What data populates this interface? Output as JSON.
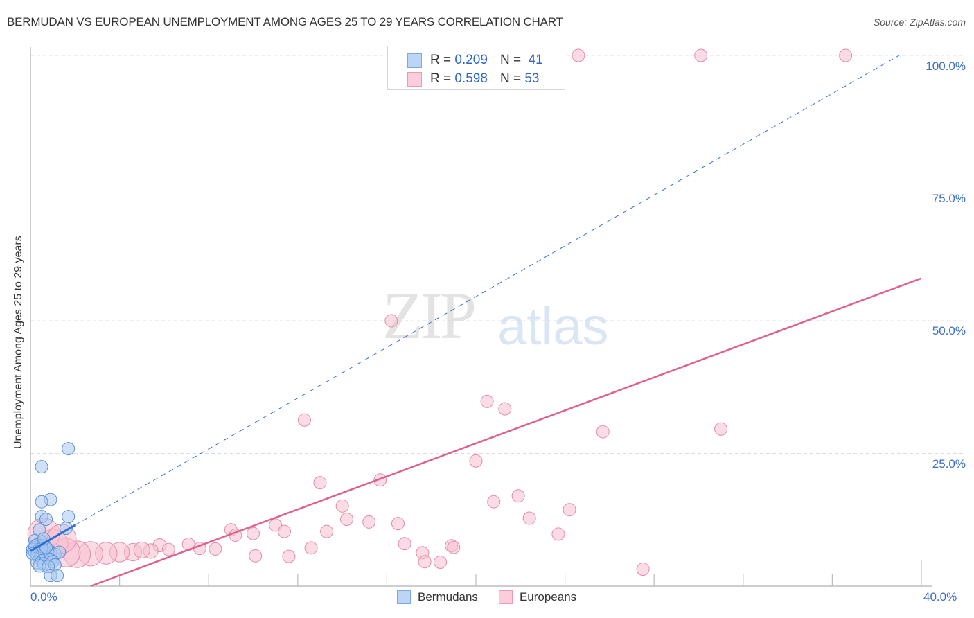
{
  "header": {
    "title": "BERMUDAN VS EUROPEAN UNEMPLOYMENT AMONG AGES 25 TO 29 YEARS CORRELATION CHART",
    "source": "Source: ZipAtlas.com"
  },
  "watermark": {
    "zip": "ZIP",
    "atlas": "atlas"
  },
  "axes": {
    "ylabel": "Unemployment Among Ages 25 to 29 years",
    "yticks": [
      "100.0%",
      "75.0%",
      "50.0%",
      "25.0%"
    ],
    "xticks": {
      "min": "0.0%",
      "max": "40.0%"
    }
  },
  "legend_top": {
    "rows": [
      {
        "r_label": "R =",
        "r_value": "0.209",
        "n_label": "N =",
        "n_value": "41",
        "color": "#a9c8f0"
      },
      {
        "r_label": "R =",
        "r_value": "0.598",
        "n_label": "N =",
        "n_value": "53",
        "color": "#f7bfd0"
      }
    ]
  },
  "legend_bottom": {
    "items": [
      {
        "label": "Bermudans",
        "color": "#a9c8f0"
      },
      {
        "label": "Europeans",
        "color": "#f7bfd0"
      }
    ]
  },
  "colors": {
    "blue_fill": "#a9c8f0",
    "blue_stroke": "#5b8fd8",
    "blue_line": "#2f6fd6",
    "pink_fill": "#f7bfd0",
    "pink_stroke": "#e58aa8",
    "pink_line": "#e0608c",
    "tick_text": "#3b6fc9"
  },
  "chart_data": {
    "type": "scatter",
    "title": "BERMUDAN VS EUROPEAN UNEMPLOYMENT AMONG AGES 25 TO 29 YEARS CORRELATION CHART",
    "xlabel": "",
    "ylabel": "Unemployment Among Ages 25 to 29 years",
    "xlim": [
      0,
      40
    ],
    "ylim": [
      0,
      100
    ],
    "x_tick_labels": [
      "0.0%",
      "40.0%"
    ],
    "y_tick_labels": [
      "25.0%",
      "50.0%",
      "75.0%",
      "100.0%"
    ],
    "grid": {
      "horizontal_dashed": true,
      "values": [
        25,
        50,
        75,
        100
      ]
    },
    "legend_position": "bottom-center",
    "series": [
      {
        "name": "Bermudans",
        "R": 0.209,
        "N": 41,
        "trend": {
          "x": [
            0,
            2.0,
            39.0
          ],
          "y": [
            6.6,
            11.5,
            100
          ],
          "style": "solid-then-dashed"
        },
        "points": [
          [
            1.7,
            25.9
          ],
          [
            0.5,
            22.5
          ],
          [
            0.9,
            16.3
          ],
          [
            0.5,
            15.9
          ],
          [
            0.5,
            13.1
          ],
          [
            1.7,
            13.1
          ],
          [
            0.7,
            12.6
          ],
          [
            0.4,
            10.6
          ],
          [
            1.6,
            10.9
          ],
          [
            0.2,
            8.6
          ],
          [
            0.5,
            8.3
          ],
          [
            0.3,
            7.8
          ],
          [
            0.6,
            7.6
          ],
          [
            0.2,
            7.2
          ],
          [
            0.4,
            7.0
          ],
          [
            0.1,
            6.9
          ],
          [
            0.8,
            6.9
          ],
          [
            0.3,
            6.6
          ],
          [
            0.6,
            6.5
          ],
          [
            0.2,
            6.3
          ],
          [
            0.9,
            6.2
          ],
          [
            0.5,
            6.0
          ],
          [
            1.1,
            6.0
          ],
          [
            0.3,
            5.8
          ],
          [
            0.7,
            5.6
          ],
          [
            1.3,
            6.4
          ],
          [
            0.4,
            5.2
          ],
          [
            0.9,
            5.0
          ],
          [
            1.0,
            4.6
          ],
          [
            0.3,
            4.4
          ],
          [
            0.6,
            4.2
          ],
          [
            1.1,
            4.0
          ],
          [
            0.4,
            3.8
          ],
          [
            0.8,
            3.7
          ],
          [
            0.2,
            7.5
          ],
          [
            0.5,
            7.1
          ],
          [
            0.7,
            7.3
          ],
          [
            0.1,
            6.1
          ],
          [
            0.9,
            2.0
          ],
          [
            1.2,
            2.0
          ],
          [
            0.6,
            8.9
          ]
        ]
      },
      {
        "name": "Europeans",
        "R": 0.598,
        "N": 53,
        "trend": {
          "x": [
            2.7,
            40.0
          ],
          "y": [
            0,
            58.0
          ],
          "style": "solid"
        },
        "points": [
          [
            24.6,
            100
          ],
          [
            30.1,
            100
          ],
          [
            36.6,
            100
          ],
          [
            16.2,
            50.0
          ],
          [
            20.5,
            34.8
          ],
          [
            21.3,
            33.4
          ],
          [
            12.3,
            31.3
          ],
          [
            25.7,
            29.1
          ],
          [
            31.0,
            29.6
          ],
          [
            20.0,
            23.6
          ],
          [
            13.0,
            19.5
          ],
          [
            15.7,
            20.0
          ],
          [
            20.8,
            15.9
          ],
          [
            21.9,
            17.0
          ],
          [
            14.0,
            15.1
          ],
          [
            24.2,
            14.4
          ],
          [
            14.2,
            12.6
          ],
          [
            15.2,
            12.1
          ],
          [
            22.4,
            12.8
          ],
          [
            16.5,
            11.8
          ],
          [
            11.0,
            11.5
          ],
          [
            11.4,
            10.3
          ],
          [
            9.0,
            10.6
          ],
          [
            13.3,
            10.3
          ],
          [
            23.7,
            9.8
          ],
          [
            9.2,
            9.6
          ],
          [
            10.0,
            9.9
          ],
          [
            16.8,
            8.0
          ],
          [
            18.9,
            7.6
          ],
          [
            12.6,
            7.2
          ],
          [
            17.6,
            6.3
          ],
          [
            19.0,
            7.3
          ],
          [
            10.1,
            5.7
          ],
          [
            11.6,
            5.6
          ],
          [
            17.7,
            4.6
          ],
          [
            18.4,
            4.5
          ],
          [
            27.5,
            3.2
          ],
          [
            5.8,
            7.7
          ],
          [
            7.1,
            7.9
          ],
          [
            7.6,
            7.1
          ],
          [
            8.3,
            7.0
          ],
          [
            6.2,
            6.9
          ],
          [
            5.4,
            6.6
          ],
          [
            4.6,
            6.4
          ],
          [
            4.0,
            6.4
          ],
          [
            3.4,
            6.2
          ],
          [
            2.7,
            6.1
          ],
          [
            2.1,
            6.0
          ],
          [
            1.6,
            6.3
          ],
          [
            1.0,
            7.8
          ],
          [
            0.6,
            9.8
          ],
          [
            1.4,
            8.9
          ],
          [
            5.0,
            6.8
          ]
        ]
      }
    ]
  }
}
